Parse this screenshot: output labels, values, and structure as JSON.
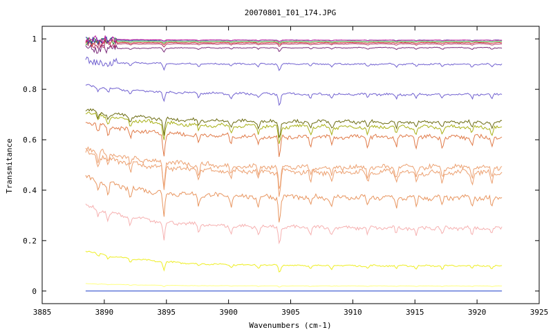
{
  "chart_data": {
    "type": "line",
    "title": "20070801_I01_174.JPG",
    "xlabel": "Wavenumbers (cm-1)",
    "ylabel": "Transmitance",
    "xlim": [
      3885,
      3925
    ],
    "ylim": [
      -0.05,
      1.05
    ],
    "x_ticks": [
      3885,
      3890,
      3895,
      3900,
      3905,
      3910,
      3915,
      3920,
      3925
    ],
    "x_tick_labels": [
      "3885",
      "3890",
      "3895",
      "3900",
      "3905",
      "3910",
      "3915",
      "3920",
      "3925"
    ],
    "y_ticks": [
      0,
      0.2,
      0.4,
      0.6,
      0.8,
      1
    ],
    "y_tick_labels": [
      "0",
      "0.2",
      "0.4",
      "0.6",
      "0.8",
      "1"
    ],
    "grid": false,
    "legend": "none",
    "x_range": [
      3888.5,
      3922
    ],
    "absorption_lines": [
      3889.5,
      3890.3,
      3892.1,
      3894.8,
      3897.6,
      3900.2,
      3902.4,
      3904.1,
      3906.6,
      3908.3,
      3911.2,
      3913.5,
      3915.1,
      3917.2,
      3919.6,
      3921.2
    ],
    "series": [
      {
        "color": "#1a3cc8",
        "start": 0.0,
        "end": 0.0,
        "dip": 0.0
      },
      {
        "color": "#ffff80",
        "start": 0.03,
        "end": 0.02,
        "dip": 0.004
      },
      {
        "color": "#eeee22",
        "start": 0.16,
        "end": 0.1,
        "dip": 0.022
      },
      {
        "color": "#f6b0b0",
        "start": 0.34,
        "end": 0.25,
        "dip": 0.05
      },
      {
        "color": "#e8955f",
        "start": 0.45,
        "end": 0.37,
        "dip": 0.07
      },
      {
        "color": "#eca070",
        "start": 0.55,
        "end": 0.47,
        "dip": 0.07
      },
      {
        "color": "#eca070",
        "start": 0.57,
        "end": 0.49,
        "dip": 0.07
      },
      {
        "color": "#e07a48",
        "start": 0.67,
        "end": 0.61,
        "dip": 0.06
      },
      {
        "color": "#a8b016",
        "start": 0.71,
        "end": 0.65,
        "dip": 0.05
      },
      {
        "color": "#6b6b10",
        "start": 0.72,
        "end": 0.67,
        "dip": 0.045
      },
      {
        "color": "#7060d0",
        "start": 0.815,
        "end": 0.78,
        "dip": 0.03
      },
      {
        "color": "#7060d0",
        "start": 0.91,
        "end": 0.9,
        "dip": 0.02
      },
      {
        "color": "#7a2a7a",
        "start": 0.96,
        "end": 0.965,
        "dip": 0.012
      },
      {
        "color": "#b03060",
        "start": 0.98,
        "end": 0.98,
        "dip": 0.008
      },
      {
        "color": "#d03030",
        "start": 0.985,
        "end": 0.985,
        "dip": 0.006
      },
      {
        "color": "#30a030",
        "start": 0.99,
        "end": 0.99,
        "dip": 0.005
      },
      {
        "color": "#2a3aa0",
        "start": 0.995,
        "end": 0.995,
        "dip": 0.004
      },
      {
        "color": "#c020a0",
        "start": 1.0,
        "end": 0.995,
        "dip": 0.004
      }
    ]
  }
}
